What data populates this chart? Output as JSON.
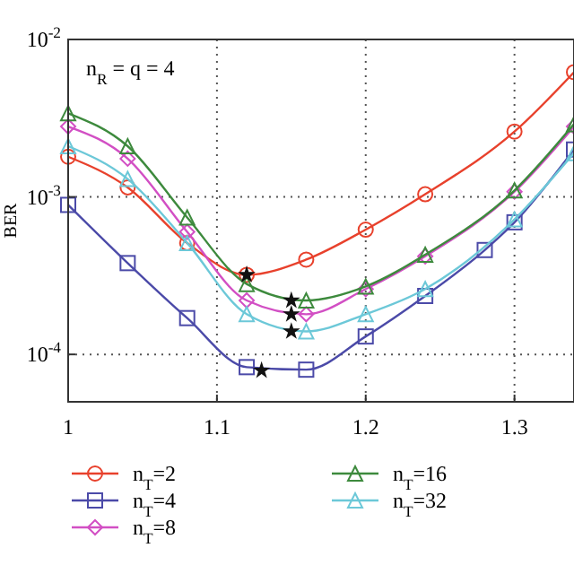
{
  "chart_data": {
    "type": "line",
    "ylabel": "BER",
    "annotations": [
      "n$_{R}$ = q = 4"
    ],
    "xlim": [
      1,
      1.34
    ],
    "xticks": [
      1,
      1.1,
      1.2,
      1.3
    ],
    "ylim": [
      5e-05,
      0.01
    ],
    "log": "y",
    "yticks": [
      {
        "value": 0.0001,
        "label": "10$^{-4}$"
      },
      {
        "value": 0.001,
        "label": "10$^{-3}$"
      },
      {
        "value": 0.01,
        "label": "10$^{-2}$"
      }
    ],
    "grid": true,
    "legend": "bottom",
    "line_style": "solid",
    "series": [
      {
        "name": "n$_{T}$=2",
        "color": "#e8412c",
        "marker": "circle",
        "x": [
          1,
          1.04,
          1.08,
          1.12,
          1.16,
          1.2,
          1.24,
          1.3,
          1.34
        ],
        "values": [
          0.0018,
          0.00115,
          0.00051,
          0.00032,
          0.0004,
          0.00062,
          0.00104,
          0.0026,
          0.0062
        ]
      },
      {
        "name": "n$_{T}$=4",
        "color": "#4b4aa8",
        "marker": "square",
        "x": [
          1,
          1.04,
          1.08,
          1.12,
          1.16,
          1.2,
          1.24,
          1.28,
          1.3,
          1.34
        ],
        "values": [
          0.00089,
          0.00038,
          0.00017,
          8.3e-05,
          8e-05,
          0.00013,
          0.000235,
          0.00046,
          0.00069,
          0.002
        ]
      },
      {
        "name": "n$_{T}$=8",
        "color": "#d24fc4",
        "marker": "diamond",
        "x": [
          1,
          1.04,
          1.08,
          1.12,
          1.16,
          1.2,
          1.24,
          1.3,
          1.34
        ],
        "values": [
          0.0028,
          0.00175,
          0.0006,
          0.00022,
          0.00018,
          0.00026,
          0.00042,
          0.00108,
          0.0028
        ]
      },
      {
        "name": "n$_{T}$=16",
        "color": "#3d8a3d",
        "marker": "triangle",
        "x": [
          1,
          1.04,
          1.08,
          1.12,
          1.16,
          1.2,
          1.24,
          1.3,
          1.34
        ],
        "values": [
          0.0034,
          0.0021,
          0.00074,
          0.00028,
          0.00022,
          0.00027,
          0.00043,
          0.0011,
          0.0029
        ]
      },
      {
        "name": "n$_{T}$=32",
        "color": "#6cc8d8",
        "marker": "triangle",
        "x": [
          1,
          1.04,
          1.08,
          1.12,
          1.16,
          1.2,
          1.24,
          1.3,
          1.34
        ],
        "values": [
          0.0021,
          0.0013,
          0.00051,
          0.00018,
          0.00014,
          0.00018,
          0.00026,
          0.00072,
          0.0019
        ]
      },
      {
        "type": "scatter",
        "color": "#111111",
        "marker": "star",
        "x": [
          1.12,
          1.13,
          1.15,
          1.15,
          1.15
        ],
        "values": [
          0.00032,
          7.9e-05,
          0.00022,
          0.00018,
          0.00014
        ]
      }
    ]
  }
}
